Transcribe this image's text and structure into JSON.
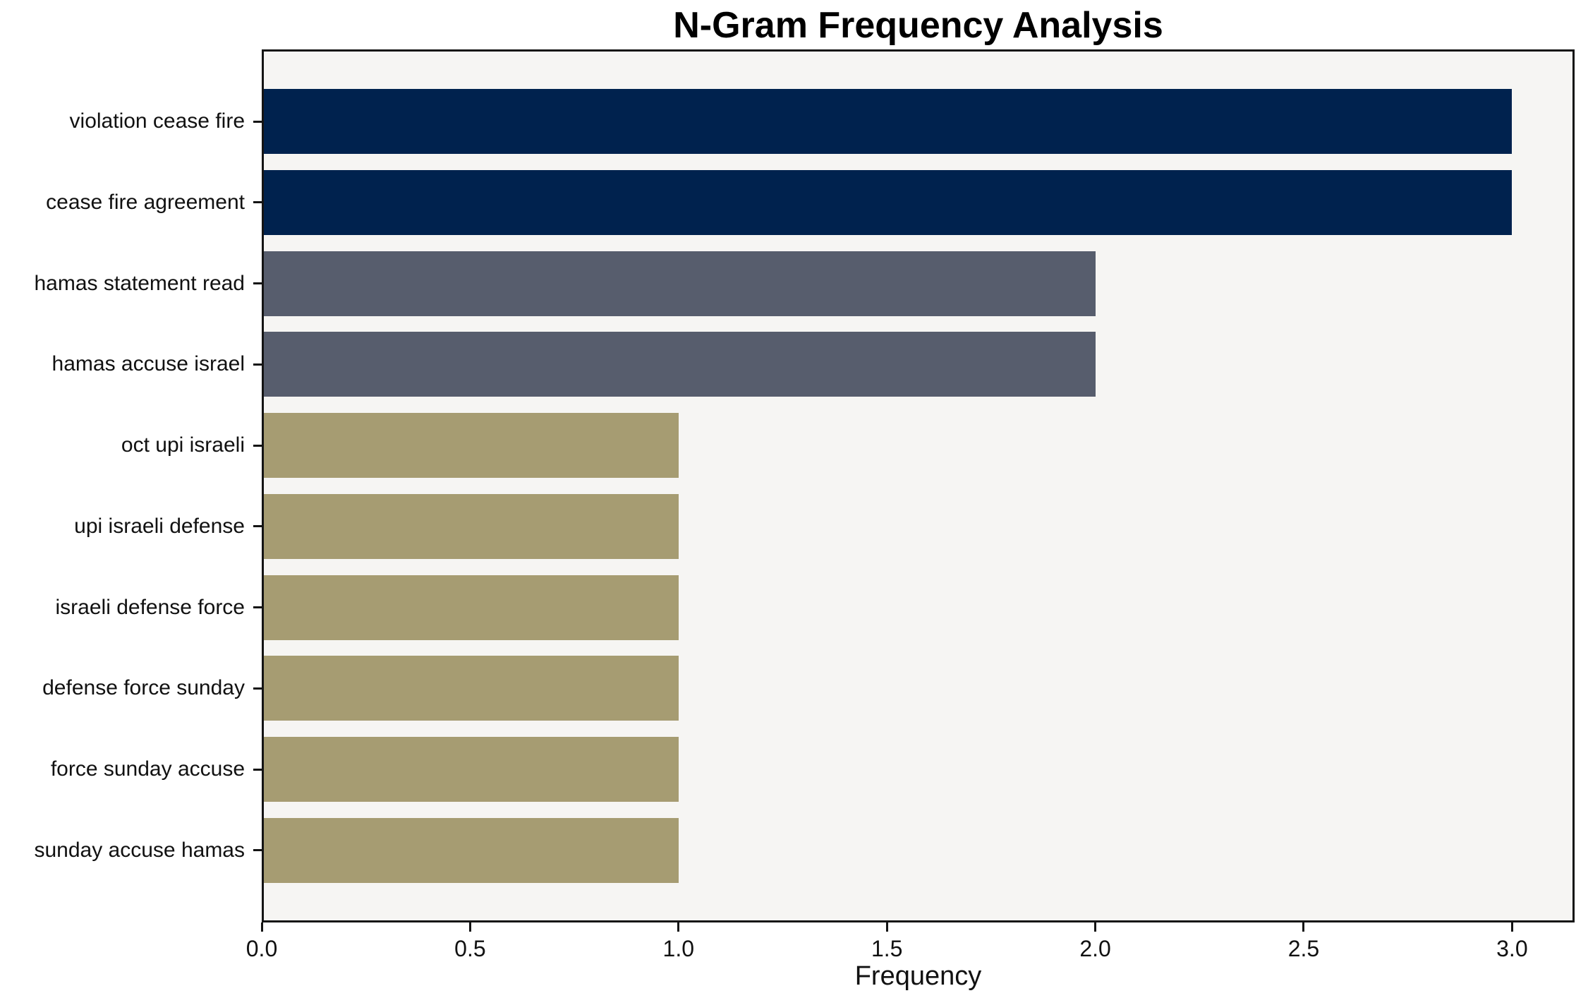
{
  "chart_data": {
    "type": "bar",
    "orientation": "horizontal",
    "title": "N-Gram Frequency Analysis",
    "xlabel": "Frequency",
    "ylabel": "",
    "categories": [
      "violation cease fire",
      "cease fire agreement",
      "hamas statement read",
      "hamas accuse israel",
      "oct upi israeli",
      "upi israeli defense",
      "israeli defense force",
      "defense force sunday",
      "force sunday accuse",
      "sunday accuse hamas"
    ],
    "values": [
      3,
      3,
      2,
      2,
      1,
      1,
      1,
      1,
      1,
      1
    ],
    "bar_colors": [
      "#00224e",
      "#00224e",
      "#575d6d",
      "#575d6d",
      "#a69c72",
      "#a69c72",
      "#a69c72",
      "#a69c72",
      "#a69c72",
      "#a69c72"
    ],
    "xlim": [
      0,
      3.15
    ],
    "xticks": [
      0,
      0.5,
      1,
      1.5,
      2,
      2.5,
      3
    ],
    "xtick_labels": [
      "0.0",
      "0.5",
      "1.0",
      "1.5",
      "2.0",
      "2.5",
      "3.0"
    ],
    "grid": false,
    "legend": null,
    "bar_relative_height": 0.8,
    "plot_background": "#f6f5f3",
    "figure_background": "#ffffff",
    "axis_color": "#141414"
  }
}
